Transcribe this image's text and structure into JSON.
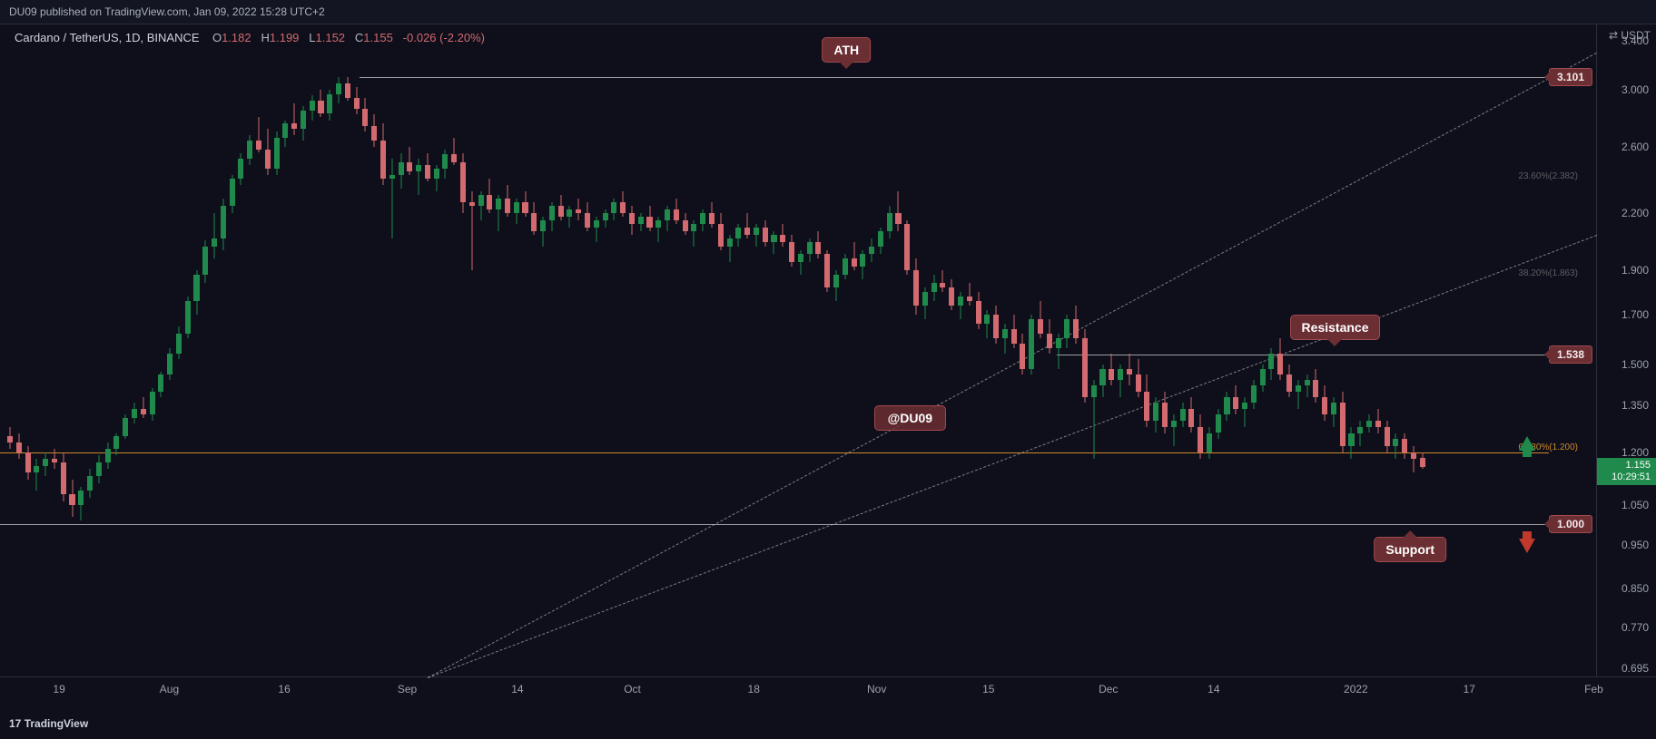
{
  "header": {
    "published": "DU09 published on TradingView.com, Jan 09, 2022 15:28 UTC+2"
  },
  "info": {
    "pair": "Cardano / TetherUS, 1D, BINANCE",
    "O_label": "O",
    "O": "1.182",
    "H_label": "H",
    "H": "1.199",
    "L_label": "L",
    "L": "1.152",
    "C_label": "C",
    "C": "1.155",
    "chg": "-0.026 (-2.20%)",
    "ohlc_color": "#d36a6f"
  },
  "axis": {
    "y_title": "⇄ USDT",
    "y_ticks": [
      3.4,
      3.0,
      2.6,
      2.2,
      1.9,
      1.7,
      1.5,
      1.35,
      1.2,
      1.05,
      0.95,
      0.85,
      0.77,
      0.695
    ],
    "x_ticks": [
      {
        "t": 0.037,
        "label": "19"
      },
      {
        "t": 0.106,
        "label": "Aug"
      },
      {
        "t": 0.178,
        "label": "16"
      },
      {
        "t": 0.255,
        "label": "Sep"
      },
      {
        "t": 0.324,
        "label": "14"
      },
      {
        "t": 0.396,
        "label": "Oct"
      },
      {
        "t": 0.472,
        "label": "18"
      },
      {
        "t": 0.549,
        "label": "Nov"
      },
      {
        "t": 0.619,
        "label": "15"
      },
      {
        "t": 0.694,
        "label": "Dec"
      },
      {
        "t": 0.76,
        "label": "14"
      },
      {
        "t": 0.849,
        "label": "2022"
      },
      {
        "t": 0.92,
        "label": "17"
      },
      {
        "t": 0.998,
        "label": "Feb"
      }
    ]
  },
  "scale": {
    "type": "log",
    "domain_min": 0.679,
    "domain_max": 3.55
  },
  "colors": {
    "up": "#1f8a4c",
    "down": "#d36a6f",
    "bg": "#131622"
  },
  "lines": {
    "ath": {
      "price": 3.101,
      "x0": 0.225,
      "x1": 0.97
    },
    "resist": {
      "price": 1.538,
      "x0": 0.662,
      "x1": 0.97
    },
    "support": {
      "price": 1.0,
      "x0": 0.0,
      "x1": 0.97
    },
    "fib618": {
      "price": 1.2,
      "x0": 0.0,
      "x1": 0.97,
      "label": "61.80%(1.200)"
    },
    "trend1": {
      "x0": 0.268,
      "y0": 0.679,
      "x1": 1.0,
      "y1": 2.08
    },
    "trend2": {
      "x0": 0.268,
      "y0": 0.679,
      "x1": 1.0,
      "y1": 3.3
    }
  },
  "price_flags": {
    "ath": "3.101",
    "res": "1.538",
    "sup": "1.000"
  },
  "current": {
    "price": "1.155",
    "countdown": "10:29:51"
  },
  "callouts": {
    "ath": {
      "text": "ATH",
      "x": 0.53
    },
    "resistance": {
      "text": "Resistance",
      "x": 0.836
    },
    "support": {
      "text": "Support",
      "x": 0.883
    },
    "watermark": {
      "text": "@DU09",
      "x": 0.57,
      "price": 1.31
    }
  },
  "arrows": {
    "up": {
      "x": 0.951,
      "price": 1.25
    },
    "down": {
      "x": 0.951,
      "price": 0.965
    }
  },
  "fib_ghost": [
    {
      "price": 2.382,
      "label": "23.60%(2.382)"
    },
    {
      "price": 1.863,
      "label": "38.20%(1.863)"
    }
  ],
  "footer": "TradingView",
  "candles": [
    {
      "o": 1.25,
      "h": 1.28,
      "l": 1.21,
      "c": 1.23
    },
    {
      "o": 1.23,
      "h": 1.26,
      "l": 1.18,
      "c": 1.2
    },
    {
      "o": 1.2,
      "h": 1.22,
      "l": 1.12,
      "c": 1.14
    },
    {
      "o": 1.14,
      "h": 1.18,
      "l": 1.09,
      "c": 1.16
    },
    {
      "o": 1.16,
      "h": 1.2,
      "l": 1.13,
      "c": 1.18
    },
    {
      "o": 1.18,
      "h": 1.21,
      "l": 1.15,
      "c": 1.17
    },
    {
      "o": 1.17,
      "h": 1.2,
      "l": 1.06,
      "c": 1.08
    },
    {
      "o": 1.08,
      "h": 1.12,
      "l": 1.02,
      "c": 1.05
    },
    {
      "o": 1.05,
      "h": 1.1,
      "l": 1.01,
      "c": 1.09
    },
    {
      "o": 1.09,
      "h": 1.15,
      "l": 1.07,
      "c": 1.13
    },
    {
      "o": 1.13,
      "h": 1.19,
      "l": 1.11,
      "c": 1.17
    },
    {
      "o": 1.17,
      "h": 1.23,
      "l": 1.15,
      "c": 1.21
    },
    {
      "o": 1.21,
      "h": 1.26,
      "l": 1.19,
      "c": 1.25
    },
    {
      "o": 1.25,
      "h": 1.32,
      "l": 1.24,
      "c": 1.31
    },
    {
      "o": 1.31,
      "h": 1.36,
      "l": 1.29,
      "c": 1.34
    },
    {
      "o": 1.34,
      "h": 1.38,
      "l": 1.31,
      "c": 1.32
    },
    {
      "o": 1.32,
      "h": 1.41,
      "l": 1.3,
      "c": 1.4
    },
    {
      "o": 1.4,
      "h": 1.47,
      "l": 1.38,
      "c": 1.46
    },
    {
      "o": 1.46,
      "h": 1.56,
      "l": 1.44,
      "c": 1.54
    },
    {
      "o": 1.54,
      "h": 1.65,
      "l": 1.52,
      "c": 1.62
    },
    {
      "o": 1.62,
      "h": 1.78,
      "l": 1.6,
      "c": 1.76
    },
    {
      "o": 1.76,
      "h": 1.9,
      "l": 1.7,
      "c": 1.88
    },
    {
      "o": 1.88,
      "h": 2.05,
      "l": 1.84,
      "c": 2.02
    },
    {
      "o": 2.02,
      "h": 2.2,
      "l": 1.96,
      "c": 2.06
    },
    {
      "o": 2.06,
      "h": 2.28,
      "l": 2.0,
      "c": 2.24
    },
    {
      "o": 2.24,
      "h": 2.42,
      "l": 2.2,
      "c": 2.4
    },
    {
      "o": 2.4,
      "h": 2.56,
      "l": 2.36,
      "c": 2.52
    },
    {
      "o": 2.52,
      "h": 2.68,
      "l": 2.48,
      "c": 2.64
    },
    {
      "o": 2.64,
      "h": 2.8,
      "l": 2.56,
      "c": 2.58
    },
    {
      "o": 2.58,
      "h": 2.72,
      "l": 2.42,
      "c": 2.46
    },
    {
      "o": 2.46,
      "h": 2.7,
      "l": 2.42,
      "c": 2.66
    },
    {
      "o": 2.66,
      "h": 2.78,
      "l": 2.6,
      "c": 2.76
    },
    {
      "o": 2.76,
      "h": 2.9,
      "l": 2.68,
      "c": 2.72
    },
    {
      "o": 2.72,
      "h": 2.88,
      "l": 2.64,
      "c": 2.85
    },
    {
      "o": 2.85,
      "h": 2.96,
      "l": 2.78,
      "c": 2.92
    },
    {
      "o": 2.92,
      "h": 3.0,
      "l": 2.8,
      "c": 2.83
    },
    {
      "o": 2.83,
      "h": 3.0,
      "l": 2.78,
      "c": 2.97
    },
    {
      "o": 2.97,
      "h": 3.101,
      "l": 2.9,
      "c": 3.05
    },
    {
      "o": 3.05,
      "h": 3.101,
      "l": 2.92,
      "c": 2.94
    },
    {
      "o": 2.94,
      "h": 3.02,
      "l": 2.82,
      "c": 2.86
    },
    {
      "o": 2.86,
      "h": 2.94,
      "l": 2.7,
      "c": 2.74
    },
    {
      "o": 2.74,
      "h": 2.82,
      "l": 2.6,
      "c": 2.64
    },
    {
      "o": 2.64,
      "h": 2.76,
      "l": 2.36,
      "c": 2.4
    },
    {
      "o": 2.4,
      "h": 2.52,
      "l": 2.06,
      "c": 2.42
    },
    {
      "o": 2.42,
      "h": 2.56,
      "l": 2.34,
      "c": 2.5
    },
    {
      "o": 2.5,
      "h": 2.6,
      "l": 2.42,
      "c": 2.44
    },
    {
      "o": 2.44,
      "h": 2.52,
      "l": 2.3,
      "c": 2.48
    },
    {
      "o": 2.48,
      "h": 2.56,
      "l": 2.38,
      "c": 2.4
    },
    {
      "o": 2.4,
      "h": 2.48,
      "l": 2.32,
      "c": 2.46
    },
    {
      "o": 2.46,
      "h": 2.58,
      "l": 2.4,
      "c": 2.55
    },
    {
      "o": 2.55,
      "h": 2.66,
      "l": 2.48,
      "c": 2.5
    },
    {
      "o": 2.5,
      "h": 2.56,
      "l": 2.2,
      "c": 2.26
    },
    {
      "o": 2.26,
      "h": 2.32,
      "l": 1.9,
      "c": 2.24
    },
    {
      "o": 2.24,
      "h": 2.32,
      "l": 2.16,
      "c": 2.3
    },
    {
      "o": 2.3,
      "h": 2.4,
      "l": 2.2,
      "c": 2.22
    },
    {
      "o": 2.22,
      "h": 2.3,
      "l": 2.1,
      "c": 2.28
    },
    {
      "o": 2.28,
      "h": 2.36,
      "l": 2.18,
      "c": 2.2
    },
    {
      "o": 2.2,
      "h": 2.28,
      "l": 2.14,
      "c": 2.26
    },
    {
      "o": 2.26,
      "h": 2.32,
      "l": 2.18,
      "c": 2.2
    },
    {
      "o": 2.2,
      "h": 2.26,
      "l": 2.08,
      "c": 2.1
    },
    {
      "o": 2.1,
      "h": 2.18,
      "l": 2.02,
      "c": 2.16
    },
    {
      "o": 2.16,
      "h": 2.26,
      "l": 2.1,
      "c": 2.24
    },
    {
      "o": 2.24,
      "h": 2.3,
      "l": 2.16,
      "c": 2.18
    },
    {
      "o": 2.18,
      "h": 2.24,
      "l": 2.12,
      "c": 2.22
    },
    {
      "o": 2.22,
      "h": 2.28,
      "l": 2.16,
      "c": 2.2
    },
    {
      "o": 2.2,
      "h": 2.26,
      "l": 2.1,
      "c": 2.12
    },
    {
      "o": 2.12,
      "h": 2.18,
      "l": 2.04,
      "c": 2.16
    },
    {
      "o": 2.16,
      "h": 2.22,
      "l": 2.12,
      "c": 2.2
    },
    {
      "o": 2.2,
      "h": 2.28,
      "l": 2.16,
      "c": 2.26
    },
    {
      "o": 2.26,
      "h": 2.32,
      "l": 2.18,
      "c": 2.2
    },
    {
      "o": 2.2,
      "h": 2.24,
      "l": 2.08,
      "c": 2.14
    },
    {
      "o": 2.14,
      "h": 2.2,
      "l": 2.1,
      "c": 2.18
    },
    {
      "o": 2.18,
      "h": 2.24,
      "l": 2.1,
      "c": 2.12
    },
    {
      "o": 2.12,
      "h": 2.18,
      "l": 2.04,
      "c": 2.16
    },
    {
      "o": 2.16,
      "h": 2.24,
      "l": 2.1,
      "c": 2.22
    },
    {
      "o": 2.22,
      "h": 2.28,
      "l": 2.14,
      "c": 2.16
    },
    {
      "o": 2.16,
      "h": 2.2,
      "l": 2.08,
      "c": 2.1
    },
    {
      "o": 2.1,
      "h": 2.16,
      "l": 2.02,
      "c": 2.14
    },
    {
      "o": 2.14,
      "h": 2.22,
      "l": 2.1,
      "c": 2.2
    },
    {
      "o": 2.2,
      "h": 2.26,
      "l": 2.12,
      "c": 2.14
    },
    {
      "o": 2.14,
      "h": 2.2,
      "l": 2.0,
      "c": 2.02
    },
    {
      "o": 2.02,
      "h": 2.08,
      "l": 1.94,
      "c": 2.06
    },
    {
      "o": 2.06,
      "h": 2.14,
      "l": 2.02,
      "c": 2.12
    },
    {
      "o": 2.12,
      "h": 2.2,
      "l": 2.06,
      "c": 2.08
    },
    {
      "o": 2.08,
      "h": 2.14,
      "l": 2.02,
      "c": 2.12
    },
    {
      "o": 2.12,
      "h": 2.16,
      "l": 2.02,
      "c": 2.04
    },
    {
      "o": 2.04,
      "h": 2.1,
      "l": 1.98,
      "c": 2.08
    },
    {
      "o": 2.08,
      "h": 2.14,
      "l": 2.02,
      "c": 2.04
    },
    {
      "o": 2.04,
      "h": 2.08,
      "l": 1.92,
      "c": 1.94
    },
    {
      "o": 1.94,
      "h": 2.0,
      "l": 1.88,
      "c": 1.98
    },
    {
      "o": 1.98,
      "h": 2.06,
      "l": 1.94,
      "c": 2.04
    },
    {
      "o": 2.04,
      "h": 2.1,
      "l": 1.96,
      "c": 1.98
    },
    {
      "o": 1.98,
      "h": 2.0,
      "l": 1.8,
      "c": 1.82
    },
    {
      "o": 1.82,
      "h": 1.9,
      "l": 1.76,
      "c": 1.88
    },
    {
      "o": 1.88,
      "h": 1.98,
      "l": 1.86,
      "c": 1.96
    },
    {
      "o": 1.96,
      "h": 2.04,
      "l": 1.9,
      "c": 1.92
    },
    {
      "o": 1.92,
      "h": 2.0,
      "l": 1.86,
      "c": 1.98
    },
    {
      "o": 1.98,
      "h": 2.06,
      "l": 1.94,
      "c": 2.02
    },
    {
      "o": 2.02,
      "h": 2.12,
      "l": 1.98,
      "c": 2.1
    },
    {
      "o": 2.1,
      "h": 2.24,
      "l": 2.06,
      "c": 2.2
    },
    {
      "o": 2.2,
      "h": 2.32,
      "l": 2.1,
      "c": 2.14
    },
    {
      "o": 2.14,
      "h": 2.16,
      "l": 1.88,
      "c": 1.9
    },
    {
      "o": 1.9,
      "h": 1.96,
      "l": 1.7,
      "c": 1.74
    },
    {
      "o": 1.74,
      "h": 1.82,
      "l": 1.68,
      "c": 1.8
    },
    {
      "o": 1.8,
      "h": 1.88,
      "l": 1.76,
      "c": 1.84
    },
    {
      "o": 1.84,
      "h": 1.9,
      "l": 1.8,
      "c": 1.82
    },
    {
      "o": 1.82,
      "h": 1.86,
      "l": 1.72,
      "c": 1.74
    },
    {
      "o": 1.74,
      "h": 1.8,
      "l": 1.68,
      "c": 1.78
    },
    {
      "o": 1.78,
      "h": 1.84,
      "l": 1.74,
      "c": 1.76
    },
    {
      "o": 1.76,
      "h": 1.8,
      "l": 1.64,
      "c": 1.66
    },
    {
      "o": 1.66,
      "h": 1.72,
      "l": 1.6,
      "c": 1.7
    },
    {
      "o": 1.7,
      "h": 1.74,
      "l": 1.58,
      "c": 1.6
    },
    {
      "o": 1.6,
      "h": 1.66,
      "l": 1.54,
      "c": 1.64
    },
    {
      "o": 1.64,
      "h": 1.7,
      "l": 1.56,
      "c": 1.58
    },
    {
      "o": 1.58,
      "h": 1.62,
      "l": 1.46,
      "c": 1.48
    },
    {
      "o": 1.48,
      "h": 1.7,
      "l": 1.46,
      "c": 1.68
    },
    {
      "o": 1.68,
      "h": 1.76,
      "l": 1.6,
      "c": 1.62
    },
    {
      "o": 1.62,
      "h": 1.68,
      "l": 1.54,
      "c": 1.56
    },
    {
      "o": 1.56,
      "h": 1.62,
      "l": 1.48,
      "c": 1.6
    },
    {
      "o": 1.6,
      "h": 1.7,
      "l": 1.56,
      "c": 1.68
    },
    {
      "o": 1.68,
      "h": 1.74,
      "l": 1.58,
      "c": 1.6
    },
    {
      "o": 1.6,
      "h": 1.64,
      "l": 1.36,
      "c": 1.38
    },
    {
      "o": 1.38,
      "h": 1.44,
      "l": 1.18,
      "c": 1.42
    },
    {
      "o": 1.42,
      "h": 1.5,
      "l": 1.38,
      "c": 1.48
    },
    {
      "o": 1.48,
      "h": 1.54,
      "l": 1.42,
      "c": 1.44
    },
    {
      "o": 1.44,
      "h": 1.5,
      "l": 1.38,
      "c": 1.48
    },
    {
      "o": 1.48,
      "h": 1.54,
      "l": 1.42,
      "c": 1.46
    },
    {
      "o": 1.46,
      "h": 1.52,
      "l": 1.38,
      "c": 1.4
    },
    {
      "o": 1.4,
      "h": 1.46,
      "l": 1.28,
      "c": 1.3
    },
    {
      "o": 1.3,
      "h": 1.38,
      "l": 1.26,
      "c": 1.36
    },
    {
      "o": 1.36,
      "h": 1.4,
      "l": 1.26,
      "c": 1.28
    },
    {
      "o": 1.28,
      "h": 1.32,
      "l": 1.22,
      "c": 1.3
    },
    {
      "o": 1.3,
      "h": 1.36,
      "l": 1.28,
      "c": 1.34
    },
    {
      "o": 1.34,
      "h": 1.38,
      "l": 1.26,
      "c": 1.28
    },
    {
      "o": 1.28,
      "h": 1.32,
      "l": 1.18,
      "c": 1.2
    },
    {
      "o": 1.2,
      "h": 1.28,
      "l": 1.18,
      "c": 1.26
    },
    {
      "o": 1.26,
      "h": 1.34,
      "l": 1.24,
      "c": 1.32
    },
    {
      "o": 1.32,
      "h": 1.4,
      "l": 1.3,
      "c": 1.38
    },
    {
      "o": 1.38,
      "h": 1.42,
      "l": 1.32,
      "c": 1.34
    },
    {
      "o": 1.34,
      "h": 1.38,
      "l": 1.28,
      "c": 1.36
    },
    {
      "o": 1.36,
      "h": 1.44,
      "l": 1.34,
      "c": 1.42
    },
    {
      "o": 1.42,
      "h": 1.5,
      "l": 1.4,
      "c": 1.48
    },
    {
      "o": 1.48,
      "h": 1.56,
      "l": 1.44,
      "c": 1.54
    },
    {
      "o": 1.54,
      "h": 1.6,
      "l": 1.44,
      "c": 1.46
    },
    {
      "o": 1.46,
      "h": 1.5,
      "l": 1.38,
      "c": 1.4
    },
    {
      "o": 1.4,
      "h": 1.44,
      "l": 1.34,
      "c": 1.42
    },
    {
      "o": 1.42,
      "h": 1.46,
      "l": 1.38,
      "c": 1.44
    },
    {
      "o": 1.44,
      "h": 1.48,
      "l": 1.36,
      "c": 1.38
    },
    {
      "o": 1.38,
      "h": 1.42,
      "l": 1.3,
      "c": 1.32
    },
    {
      "o": 1.32,
      "h": 1.38,
      "l": 1.28,
      "c": 1.36
    },
    {
      "o": 1.36,
      "h": 1.4,
      "l": 1.2,
      "c": 1.22
    },
    {
      "o": 1.22,
      "h": 1.28,
      "l": 1.18,
      "c": 1.26
    },
    {
      "o": 1.26,
      "h": 1.3,
      "l": 1.22,
      "c": 1.28
    },
    {
      "o": 1.28,
      "h": 1.32,
      "l": 1.26,
      "c": 1.3
    },
    {
      "o": 1.3,
      "h": 1.34,
      "l": 1.26,
      "c": 1.28
    },
    {
      "o": 1.28,
      "h": 1.3,
      "l": 1.2,
      "c": 1.22
    },
    {
      "o": 1.22,
      "h": 1.26,
      "l": 1.18,
      "c": 1.24
    },
    {
      "o": 1.24,
      "h": 1.26,
      "l": 1.18,
      "c": 1.2
    },
    {
      "o": 1.2,
      "h": 1.22,
      "l": 1.14,
      "c": 1.18
    },
    {
      "o": 1.182,
      "h": 1.199,
      "l": 1.152,
      "c": 1.155
    }
  ]
}
